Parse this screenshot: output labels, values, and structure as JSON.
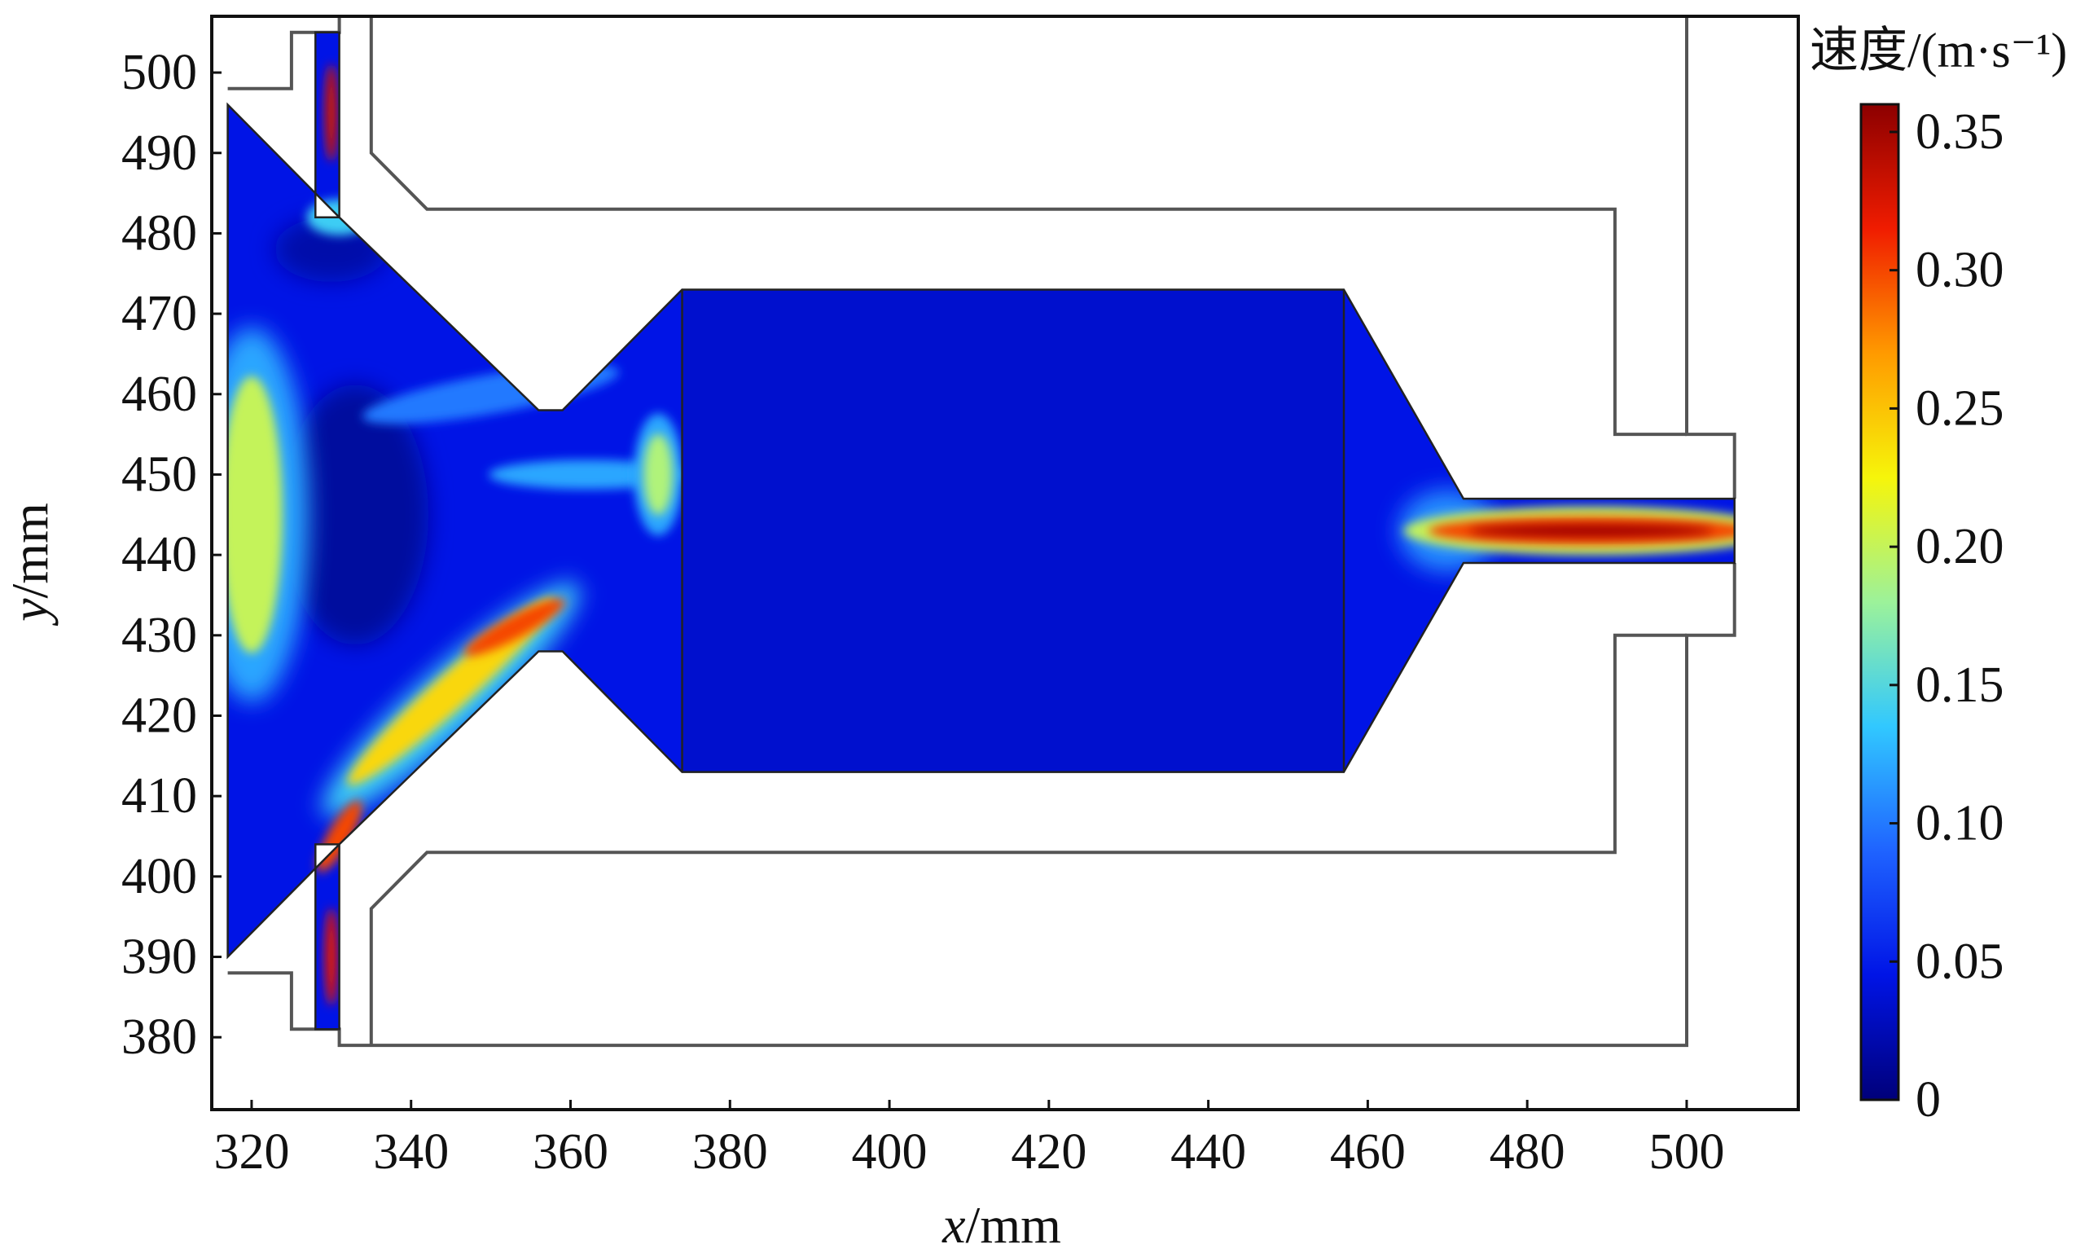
{
  "chart_data": {
    "type": "heatmap",
    "title": "",
    "xlabel": {
      "var": "x",
      "unit": "/mm"
    },
    "ylabel": {
      "var": "y",
      "unit": "/mm"
    },
    "xlim": [
      315,
      514
    ],
    "ylim": [
      371,
      507
    ],
    "x_ticks": [
      320,
      340,
      360,
      380,
      400,
      420,
      440,
      460,
      480,
      500
    ],
    "y_ticks": [
      380,
      390,
      400,
      410,
      420,
      430,
      440,
      450,
      460,
      470,
      480,
      490,
      500
    ],
    "colorbar": {
      "title": "速度/(m·s⁻¹)",
      "min": 0,
      "max": 0.36,
      "ticks": [
        "0",
        "0.05",
        "0.10",
        "0.15",
        "0.20",
        "0.25",
        "0.30",
        "0.35"
      ],
      "tick_values": [
        0,
        0.05,
        0.1,
        0.15,
        0.2,
        0.25,
        0.3,
        0.35
      ],
      "colormap": [
        "#00007a",
        "#0014e6",
        "#1f63ff",
        "#31c8ff",
        "#9cf29a",
        "#f6f50a",
        "#ff9a00",
        "#f01c00",
        "#8c0000"
      ]
    },
    "grid": false,
    "flow_domain_outline": [
      [
        317,
        496
      ],
      [
        329,
        484
      ],
      [
        331,
        482
      ],
      [
        356,
        458
      ],
      [
        359,
        458
      ],
      [
        374,
        473
      ],
      [
        457,
        473
      ],
      [
        472,
        447
      ],
      [
        506,
        447
      ],
      [
        506,
        439
      ],
      [
        472,
        439
      ],
      [
        457,
        413
      ],
      [
        374,
        413
      ],
      [
        359,
        428
      ],
      [
        356,
        428
      ],
      [
        331,
        404
      ],
      [
        329,
        402
      ],
      [
        317,
        390
      ]
    ],
    "inlet_channels": [
      {
        "x_range": [
          328,
          331
        ],
        "y_range": [
          482,
          505
        ]
      },
      {
        "x_range": [
          328,
          331
        ],
        "y_range": [
          381,
          404
        ]
      }
    ],
    "divider_lines_x": [
      374,
      457
    ],
    "housing_outline_upper": [
      [
        317,
        498
      ],
      [
        325,
        498
      ],
      [
        325,
        505
      ],
      [
        331,
        505
      ],
      [
        331,
        507
      ],
      [
        500,
        507
      ],
      [
        500,
        455
      ],
      [
        506,
        455
      ],
      [
        506,
        447
      ]
    ],
    "housing_inner_upper": [
      [
        335,
        507
      ],
      [
        335,
        490
      ],
      [
        342,
        483
      ],
      [
        491,
        483
      ],
      [
        491,
        455
      ],
      [
        500,
        455
      ]
    ],
    "housing_outline_lower": [
      [
        317,
        388
      ],
      [
        325,
        388
      ],
      [
        325,
        381
      ],
      [
        331,
        381
      ],
      [
        331,
        379
      ],
      [
        500,
        379
      ],
      [
        500,
        430
      ],
      [
        506,
        430
      ],
      [
        506,
        439
      ]
    ],
    "housing_inner_lower": [
      [
        335,
        379
      ],
      [
        335,
        396
      ],
      [
        342,
        403
      ],
      [
        491,
        403
      ],
      [
        491,
        430
      ],
      [
        500,
        430
      ]
    ],
    "velocity_features": [
      {
        "region": "outlet jet core",
        "center": [
          484,
          443
        ],
        "speed": 0.35
      },
      {
        "region": "lower diagonal jet",
        "center": [
          353,
          431
        ],
        "speed": 0.3
      },
      {
        "region": "lower diagonal jet",
        "center": [
          330,
          404
        ],
        "speed": 0.32
      },
      {
        "region": "upper inlet channel",
        "center": [
          330,
          495
        ],
        "speed": 0.33
      },
      {
        "region": "lower inlet channel",
        "center": [
          330,
          388
        ],
        "speed": 0.32
      },
      {
        "region": "left wall band",
        "center": [
          320,
          445
        ],
        "speed": 0.2
      },
      {
        "region": "throat exit lobe",
        "center": [
          371,
          450
        ],
        "speed": 0.19
      },
      {
        "region": "upper diagonal shear layer",
        "center": [
          354,
          458
        ],
        "speed": 0.12
      },
      {
        "region": "filter body",
        "center": [
          415,
          443
        ],
        "speed": 0.04
      }
    ]
  }
}
